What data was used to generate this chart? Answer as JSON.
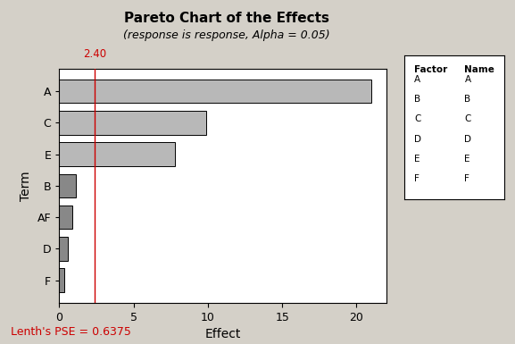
{
  "title": "Pareto Chart of the Effects",
  "subtitle": "(response is response, Alpha = 0.05)",
  "xlabel": "Effect",
  "ylabel": "Term",
  "terms": [
    "A",
    "C",
    "E",
    "B",
    "AF",
    "D",
    "F"
  ],
  "values": [
    21.0,
    9.9,
    7.8,
    1.1,
    0.85,
    0.55,
    0.35
  ],
  "alpha_line": 2.4,
  "alpha_line_label": "2.40",
  "bar_color_above": "#b8b8b8",
  "bar_color_below": "#888888",
  "bar_edge_color": "#000000",
  "bg_color": "#d4d0c8",
  "plot_bg_color": "#ffffff",
  "lenth_pse_text": "Lenth's PSE = 0.6375",
  "lenth_text_color": "#cc0000",
  "alpha_line_color": "#cc0000",
  "legend_factors": [
    "A",
    "B",
    "C",
    "D",
    "E",
    "F"
  ],
  "legend_names": [
    "A",
    "B",
    "C",
    "D",
    "E",
    "F"
  ],
  "xlim": [
    0,
    22
  ],
  "xticks": [
    0,
    5,
    10,
    15,
    20
  ]
}
